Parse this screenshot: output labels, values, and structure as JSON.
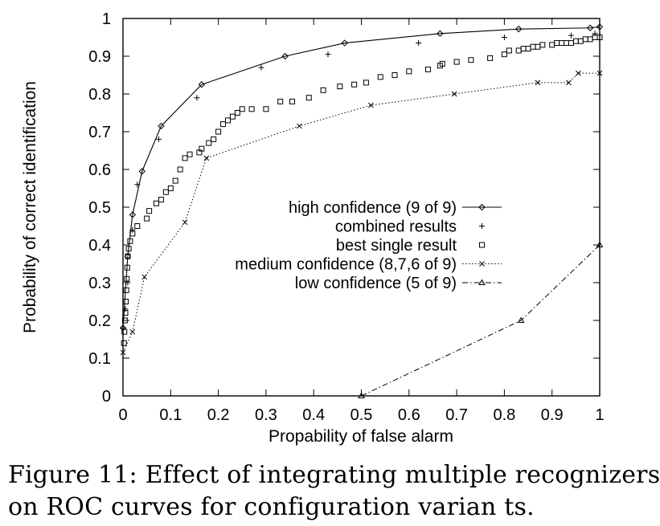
{
  "chart_data": {
    "type": "line",
    "xlabel": "Propability of false alarm",
    "ylabel": "Probability of correct identification",
    "xlim": [
      0,
      1
    ],
    "ylim": [
      0,
      1
    ],
    "xticks": [
      "0",
      "0.1",
      "0.2",
      "0.3",
      "0.4",
      "0.5",
      "0.6",
      "0.7",
      "0.8",
      "0.9",
      "1"
    ],
    "yticks": [
      "0",
      "0.1",
      "0.2",
      "0.3",
      "0.4",
      "0.5",
      "0.6",
      "0.7",
      "0.8",
      "0.9",
      "1"
    ],
    "grid": false,
    "legend_position": "center-right",
    "series": [
      {
        "name": "high confidence (9 of 9)",
        "marker": "diamond",
        "line": "solid",
        "x": [
          0.0,
          0.01,
          0.02,
          0.04,
          0.08,
          0.165,
          0.34,
          0.465,
          0.665,
          0.83,
          0.98,
          1.0
        ],
        "y": [
          0.18,
          0.37,
          0.48,
          0.595,
          0.715,
          0.825,
          0.9,
          0.935,
          0.96,
          0.972,
          0.975,
          0.978
        ]
      },
      {
        "name": "combined results",
        "marker": "plus",
        "line": "none",
        "x": [
          0.0,
          0.005,
          0.01,
          0.02,
          0.03,
          0.075,
          0.155,
          0.29,
          0.43,
          0.62,
          0.8,
          0.94,
          0.99
        ],
        "y": [
          0.18,
          0.23,
          0.3,
          0.44,
          0.56,
          0.68,
          0.79,
          0.87,
          0.905,
          0.935,
          0.95,
          0.955,
          0.96
        ]
      },
      {
        "name": "best single result",
        "marker": "square",
        "line": "none",
        "x": [
          0.002,
          0.003,
          0.004,
          0.005,
          0.006,
          0.007,
          0.008,
          0.009,
          0.01,
          0.012,
          0.015,
          0.02,
          0.03,
          0.05,
          0.055,
          0.07,
          0.08,
          0.09,
          0.1,
          0.11,
          0.12,
          0.13,
          0.14,
          0.16,
          0.165,
          0.18,
          0.19,
          0.2,
          0.21,
          0.22,
          0.23,
          0.24,
          0.25,
          0.27,
          0.3,
          0.33,
          0.355,
          0.39,
          0.42,
          0.455,
          0.485,
          0.51,
          0.54,
          0.57,
          0.6,
          0.64,
          0.665,
          0.67,
          0.7,
          0.73,
          0.77,
          0.8,
          0.81,
          0.83,
          0.84,
          0.85,
          0.86,
          0.87,
          0.88,
          0.9,
          0.91,
          0.92,
          0.93,
          0.94,
          0.95,
          0.96,
          0.97,
          0.98,
          0.99,
          1.0
        ],
        "y": [
          0.14,
          0.17,
          0.2,
          0.22,
          0.25,
          0.28,
          0.31,
          0.34,
          0.37,
          0.39,
          0.41,
          0.43,
          0.45,
          0.47,
          0.49,
          0.51,
          0.52,
          0.54,
          0.55,
          0.57,
          0.6,
          0.63,
          0.64,
          0.645,
          0.655,
          0.67,
          0.68,
          0.7,
          0.72,
          0.73,
          0.74,
          0.75,
          0.76,
          0.76,
          0.76,
          0.78,
          0.78,
          0.79,
          0.81,
          0.82,
          0.825,
          0.83,
          0.845,
          0.85,
          0.86,
          0.865,
          0.875,
          0.88,
          0.885,
          0.89,
          0.895,
          0.905,
          0.915,
          0.915,
          0.92,
          0.92,
          0.925,
          0.925,
          0.93,
          0.93,
          0.935,
          0.935,
          0.935,
          0.935,
          0.94,
          0.94,
          0.945,
          0.945,
          0.95,
          0.95
        ]
      },
      {
        "name": "medium confidence (8,7,6 of 9)",
        "marker": "cross",
        "line": "dotted",
        "x": [
          0.0,
          0.02,
          0.045,
          0.13,
          0.175,
          0.37,
          0.52,
          0.695,
          0.87,
          0.935,
          0.955,
          1.0
        ],
        "y": [
          0.115,
          0.17,
          0.315,
          0.46,
          0.63,
          0.715,
          0.77,
          0.8,
          0.83,
          0.83,
          0.855,
          0.855
        ]
      },
      {
        "name": "low confidence (5 of 9)",
        "marker": "triangle",
        "line": "dashdot",
        "x": [
          0.5,
          0.835,
          1.0
        ],
        "y": [
          0.0,
          0.2,
          0.4
        ]
      }
    ]
  },
  "caption": {
    "line1": "Figure 11: Effect of integrating multiple recognizers",
    "line2": "on ROC curves for configuration varian ts."
  }
}
